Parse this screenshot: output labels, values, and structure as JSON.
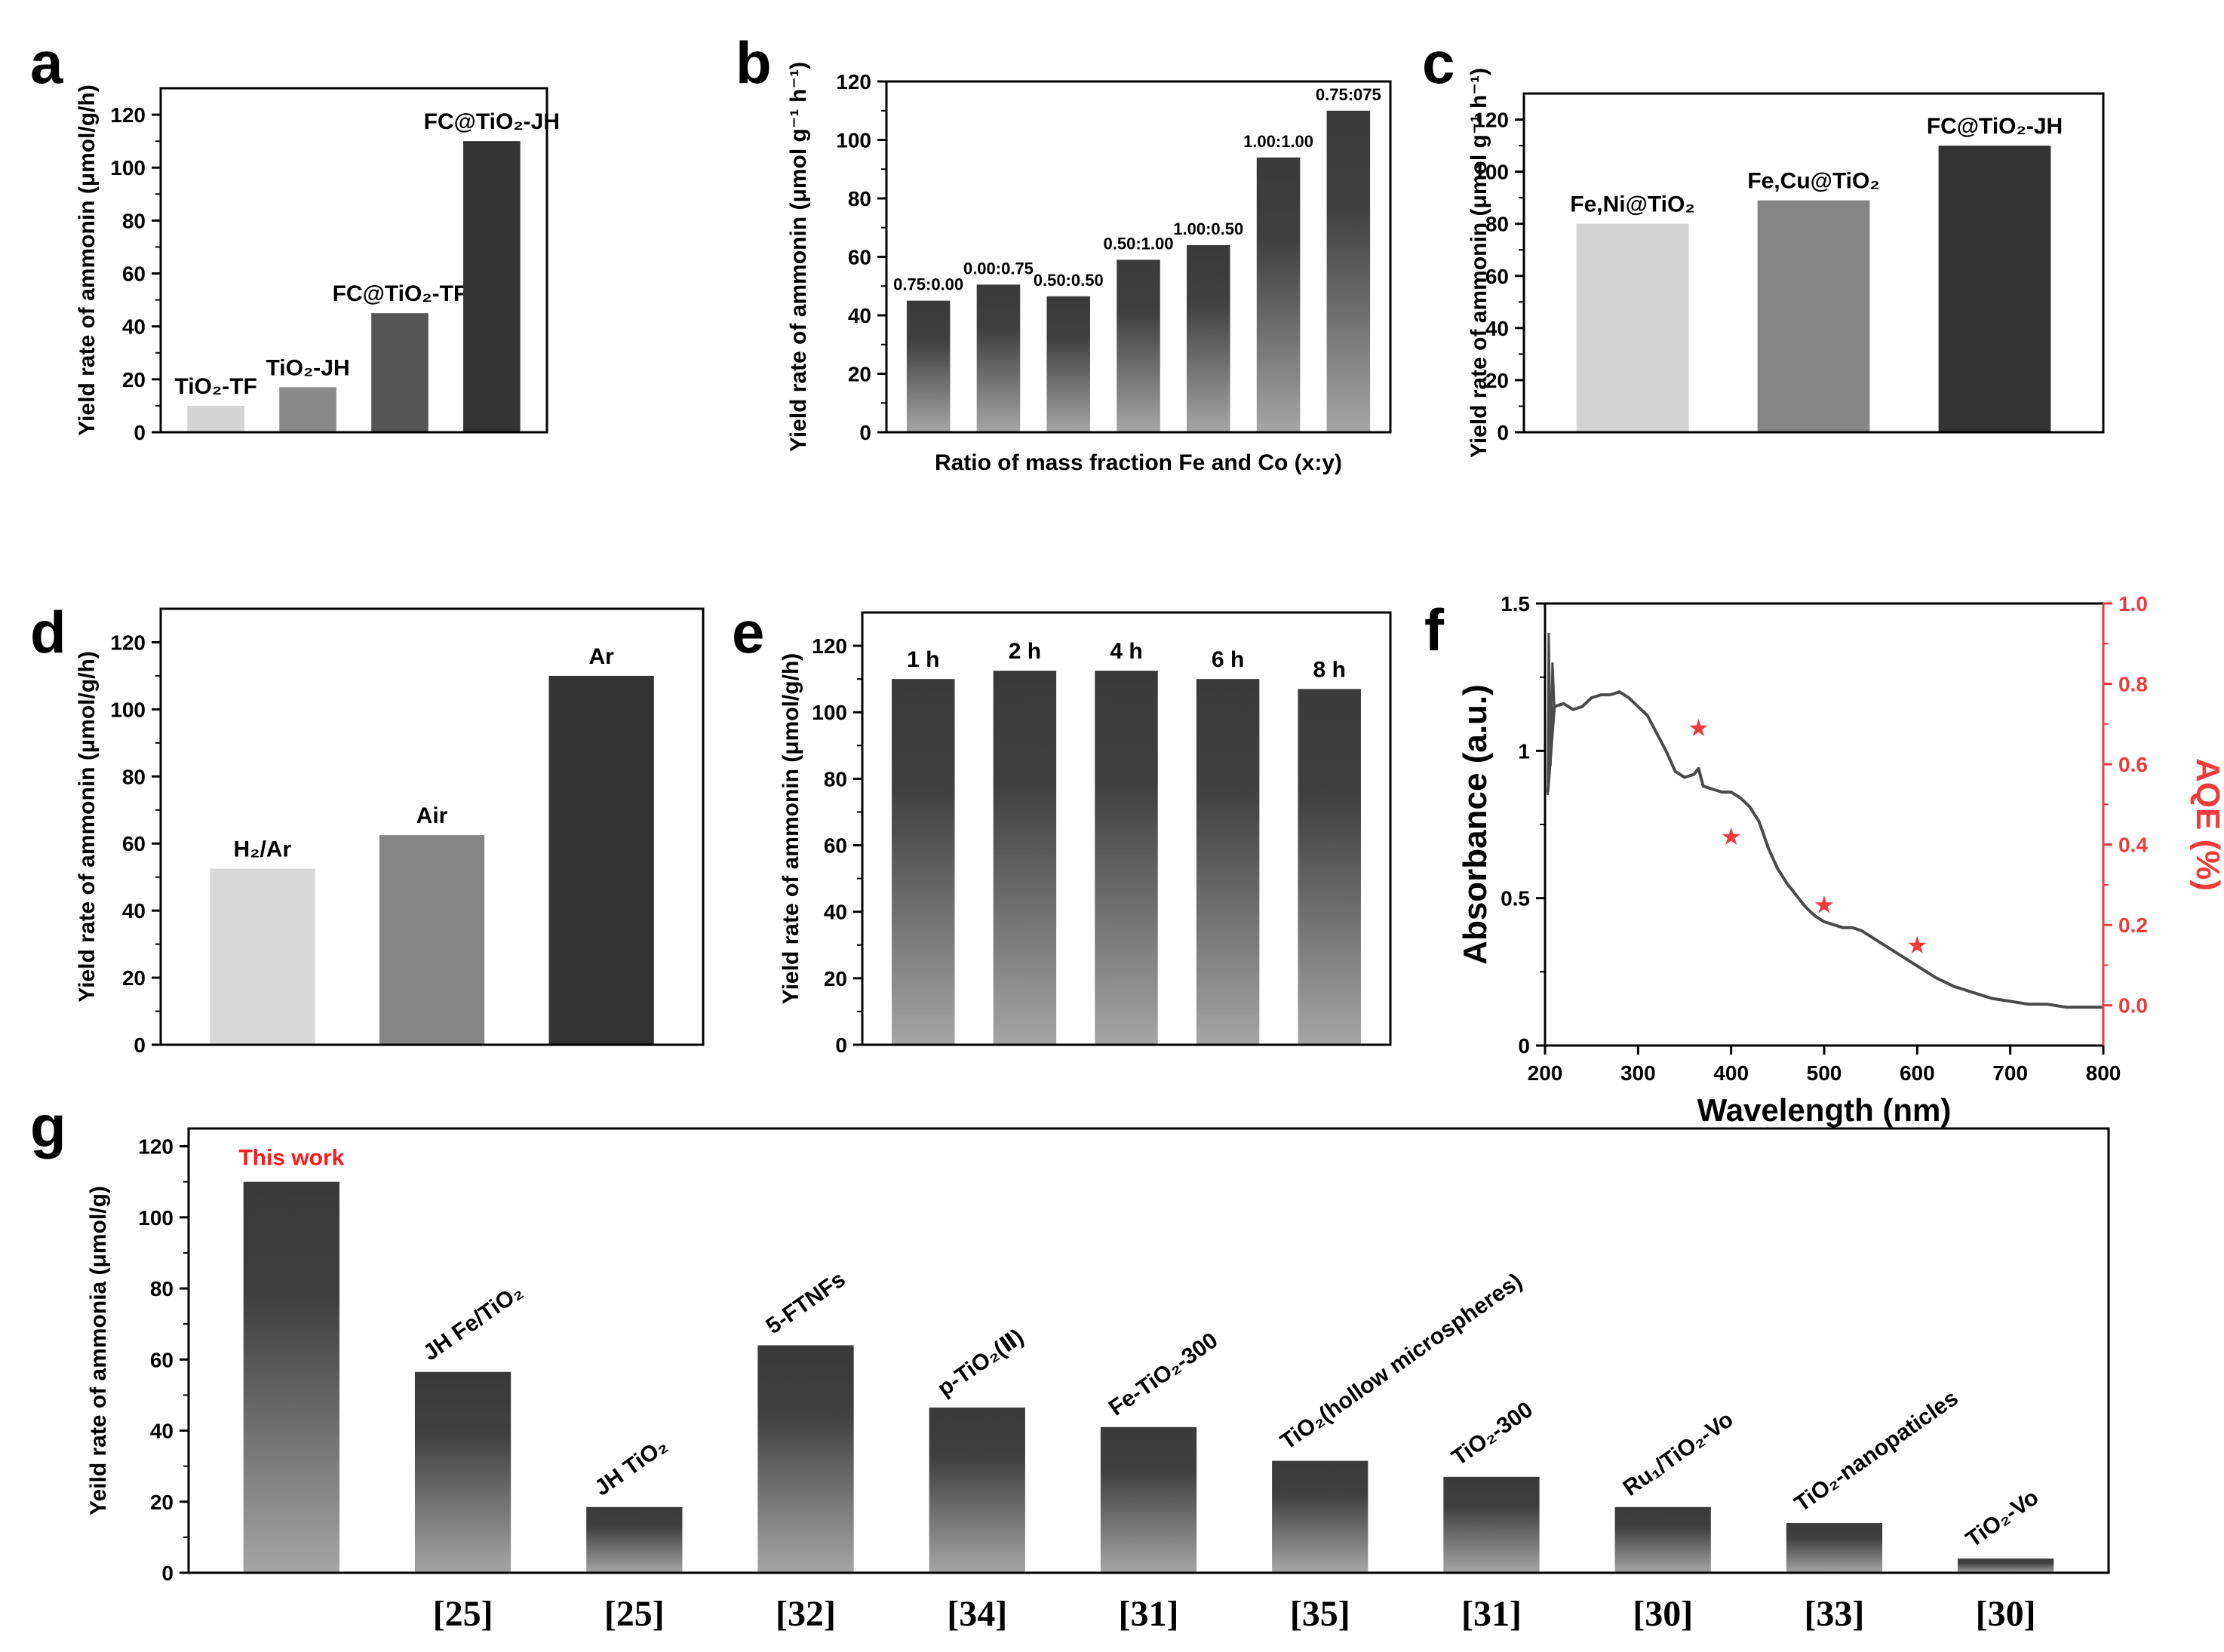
{
  "panels": [
    {
      "id": "a",
      "label": "a",
      "type": "bar",
      "ylabel": "Yield rate of ammonin (μmol/g/h)",
      "ylim": [
        0,
        130
      ],
      "yticks": [
        0,
        20,
        40,
        60,
        80,
        100,
        120
      ],
      "categories": [
        "TiO2-TF",
        "TiO2-JH",
        "FC@TiO2-TF",
        "FC@TiO2-JH"
      ],
      "bar_labels": [
        "TiO₂-TF",
        "TiO₂-JH",
        "FC@TiO₂-TF",
        "FC@TiO₂-JH"
      ],
      "values": [
        10,
        17,
        45,
        110
      ],
      "colors": [
        "#d4d4d4",
        "#8a8a8a",
        "#555555",
        "#333333"
      ]
    },
    {
      "id": "b",
      "label": "b",
      "type": "bar",
      "ylabel": "Yield rate of ammonin (μmol g⁻¹ h⁻¹)",
      "xlabel": "Ratio of mass fraction Fe and Co (x:y)",
      "ylim": [
        0,
        120
      ],
      "yticks": [
        0,
        20,
        40,
        60,
        80,
        100,
        120
      ],
      "categories": [
        "0.75:0.00",
        "0.00:0.75",
        "0.50:0.50",
        "0.50:1.00",
        "1.00:0.50",
        "1.00:1.00",
        "0.75:075"
      ],
      "bar_labels": [
        "0.75:0.00",
        "0.00:0.75",
        "0.50:0.50",
        "0.50:1.00",
        "1.00:0.50",
        "1.00:1.00",
        "0.75:075"
      ],
      "values": [
        45,
        50.5,
        46.5,
        59,
        64,
        94,
        110
      ],
      "gradient": true
    },
    {
      "id": "c",
      "label": "c",
      "type": "bar",
      "ylabel": "Yield rate of ammonin (μmol g⁻¹ h⁻¹)",
      "ylim": [
        0,
        130
      ],
      "yticks": [
        0,
        20,
        40,
        60,
        80,
        100,
        120
      ],
      "categories": [
        "Fe,Ni@TiO2",
        "Fe,Cu@TiO2",
        "FC@TiO2-JH"
      ],
      "bar_labels": [
        "Fe,Ni@TiO₂",
        "Fe,Cu@TiO₂",
        "FC@TiO₂-JH"
      ],
      "values": [
        80,
        89,
        110
      ],
      "colors": [
        "#d4d4d4",
        "#858585",
        "#333333"
      ]
    },
    {
      "id": "d",
      "label": "d",
      "type": "bar",
      "ylabel": "Yield rate of ammonin (μmol/g/h)",
      "ylim": [
        0,
        130
      ],
      "yticks": [
        0,
        20,
        40,
        60,
        80,
        100,
        120
      ],
      "categories": [
        "H2/Ar",
        "Air",
        "Ar"
      ],
      "bar_labels": [
        "H₂/Ar",
        "Air",
        "Ar"
      ],
      "values": [
        52.5,
        62.5,
        110
      ],
      "colors": [
        "#d9d9d9",
        "#858585",
        "#333333"
      ]
    },
    {
      "id": "e",
      "label": "e",
      "type": "bar",
      "ylabel": "Yield rate of ammonin (μmol/g/h)",
      "ylim": [
        0,
        130
      ],
      "yticks": [
        0,
        20,
        40,
        60,
        80,
        100,
        120
      ],
      "categories": [
        "1 h",
        "2 h",
        "4 h",
        "6 h",
        "8 h"
      ],
      "bar_labels": [
        "1 h",
        "2 h",
        "4 h",
        "6 h",
        "8 h"
      ],
      "values": [
        110,
        112.5,
        112.5,
        110,
        107
      ],
      "gradient": true
    },
    {
      "id": "f",
      "label": "f",
      "type": "line",
      "xlabel": "Wavelength (nm)",
      "ylabel": "Absorbance (a.u.)",
      "y2label": "AQE (%)",
      "xlim": [
        200,
        800
      ],
      "ylim": [
        0,
        1.5
      ],
      "y2lim": [
        -0.1,
        1.0
      ],
      "xticks": [
        200,
        300,
        400,
        500,
        600,
        700,
        800
      ],
      "yticks": [
        0.0,
        0.5,
        1.0,
        1.5
      ],
      "y2ticks": [
        0.0,
        0.2,
        0.4,
        0.6,
        0.8,
        1.0
      ],
      "absorbance_x": [
        203,
        210,
        220,
        230,
        240,
        250,
        260,
        270,
        280,
        290,
        300,
        310,
        320,
        330,
        340,
        350,
        360,
        365,
        370,
        380,
        390,
        400,
        410,
        420,
        430,
        440,
        450,
        460,
        470,
        480,
        490,
        500,
        510,
        520,
        530,
        540,
        550,
        560,
        570,
        580,
        590,
        600,
        620,
        640,
        660,
        680,
        700,
        720,
        740,
        760,
        780,
        800
      ],
      "absorbance_y": [
        0.86,
        1.15,
        1.16,
        1.14,
        1.15,
        1.18,
        1.19,
        1.19,
        1.2,
        1.18,
        1.15,
        1.12,
        1.06,
        1.0,
        0.93,
        0.91,
        0.92,
        0.94,
        0.88,
        0.87,
        0.86,
        0.86,
        0.84,
        0.81,
        0.76,
        0.67,
        0.6,
        0.55,
        0.51,
        0.47,
        0.44,
        0.42,
        0.41,
        0.4,
        0.4,
        0.39,
        0.37,
        0.35,
        0.33,
        0.31,
        0.29,
        0.27,
        0.23,
        0.2,
        0.18,
        0.16,
        0.15,
        0.14,
        0.14,
        0.13,
        0.13,
        0.13
      ],
      "aqe_x": [
        365,
        400,
        500,
        600
      ],
      "aqe_y": [
        0.69,
        0.42,
        0.25,
        0.15
      ],
      "line_color": "#4a4a4a",
      "aqe_color": "#ee3b3b"
    },
    {
      "id": "g",
      "label": "g",
      "type": "bar",
      "ylabel": "Yeild rate of ammonia (μmol/g)",
      "ylim": [
        0,
        125
      ],
      "yticks": [
        0,
        20,
        40,
        60,
        80,
        100,
        120
      ],
      "categories": [
        "This work",
        "JH Fe/TiO2",
        "JH TiO2",
        "5-FTNFs",
        "p-TiO2(Ⅱ)",
        "Fe-TiO2-300",
        "TiO2(hollow microspheres)",
        "TiO2-300",
        "Ru1/TiO2-Vo",
        "TiO2-nanopaticles",
        "TiO2-Vo"
      ],
      "bar_labels": [
        "This work",
        "JH Fe/TiO₂",
        "JH TiO₂",
        "5-FTNFs",
        "p-TiO₂(Ⅱ)",
        "Fe-TiO₂-300",
        "TiO₂(hollow microspheres)",
        "TiO₂-300",
        "Ru₁/TiO₂-Vo",
        "TiO₂-nanopaticles",
        "TiO₂-Vo"
      ],
      "refs": [
        "",
        "[25]",
        "[25]",
        "[32]",
        "[34]",
        "[31]",
        "[35]",
        "[31]",
        "[30]",
        "[33]",
        "[30]"
      ],
      "values": [
        110,
        56.5,
        18.5,
        64,
        46.5,
        41,
        31.5,
        27,
        18.5,
        14,
        4
      ],
      "highlight_color": "#ff1a1a",
      "gradient": true
    }
  ]
}
